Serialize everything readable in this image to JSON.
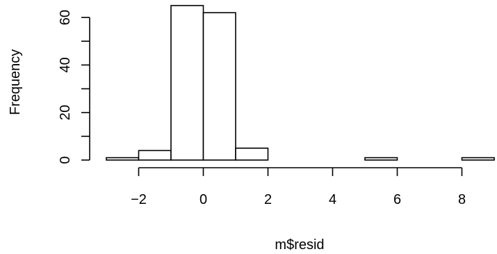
{
  "chart_data": {
    "type": "bar",
    "subtype": "histogram",
    "title": "",
    "xlabel": "m$resid",
    "ylabel": "Frequency",
    "bins": [
      {
        "x0": -3,
        "x1": -2,
        "count": 1
      },
      {
        "x0": -2,
        "x1": -1,
        "count": 4
      },
      {
        "x0": -1,
        "x1": 0,
        "count": 65
      },
      {
        "x0": 0,
        "x1": 1,
        "count": 62
      },
      {
        "x0": 1,
        "x1": 2,
        "count": 5
      },
      {
        "x0": 2,
        "x1": 3,
        "count": 0
      },
      {
        "x0": 3,
        "x1": 4,
        "count": 0
      },
      {
        "x0": 4,
        "x1": 5,
        "count": 0
      },
      {
        "x0": 5,
        "x1": 6,
        "count": 1
      },
      {
        "x0": 6,
        "x1": 7,
        "count": 0
      },
      {
        "x0": 7,
        "x1": 8,
        "count": 0
      },
      {
        "x0": 8,
        "x1": 9,
        "count": 1
      }
    ],
    "xlim": [
      -3,
      9
    ],
    "ylim": [
      0,
      65
    ],
    "xticks": [
      {
        "value": -2,
        "label": "−2"
      },
      {
        "value": 0,
        "label": "0"
      },
      {
        "value": 2,
        "label": "2"
      },
      {
        "value": 4,
        "label": "4"
      },
      {
        "value": 6,
        "label": "6"
      },
      {
        "value": 8,
        "label": "8"
      }
    ],
    "yticks_labeled": [
      {
        "value": 0,
        "label": "0"
      },
      {
        "value": 20,
        "label": "20"
      },
      {
        "value": 40,
        "label": "40"
      },
      {
        "value": 60,
        "label": "60"
      }
    ],
    "yticks_minor": [
      10,
      30,
      50
    ],
    "bar_fill": "#ffffff",
    "bar_stroke": "#000000",
    "grid": false,
    "legend": "none"
  }
}
